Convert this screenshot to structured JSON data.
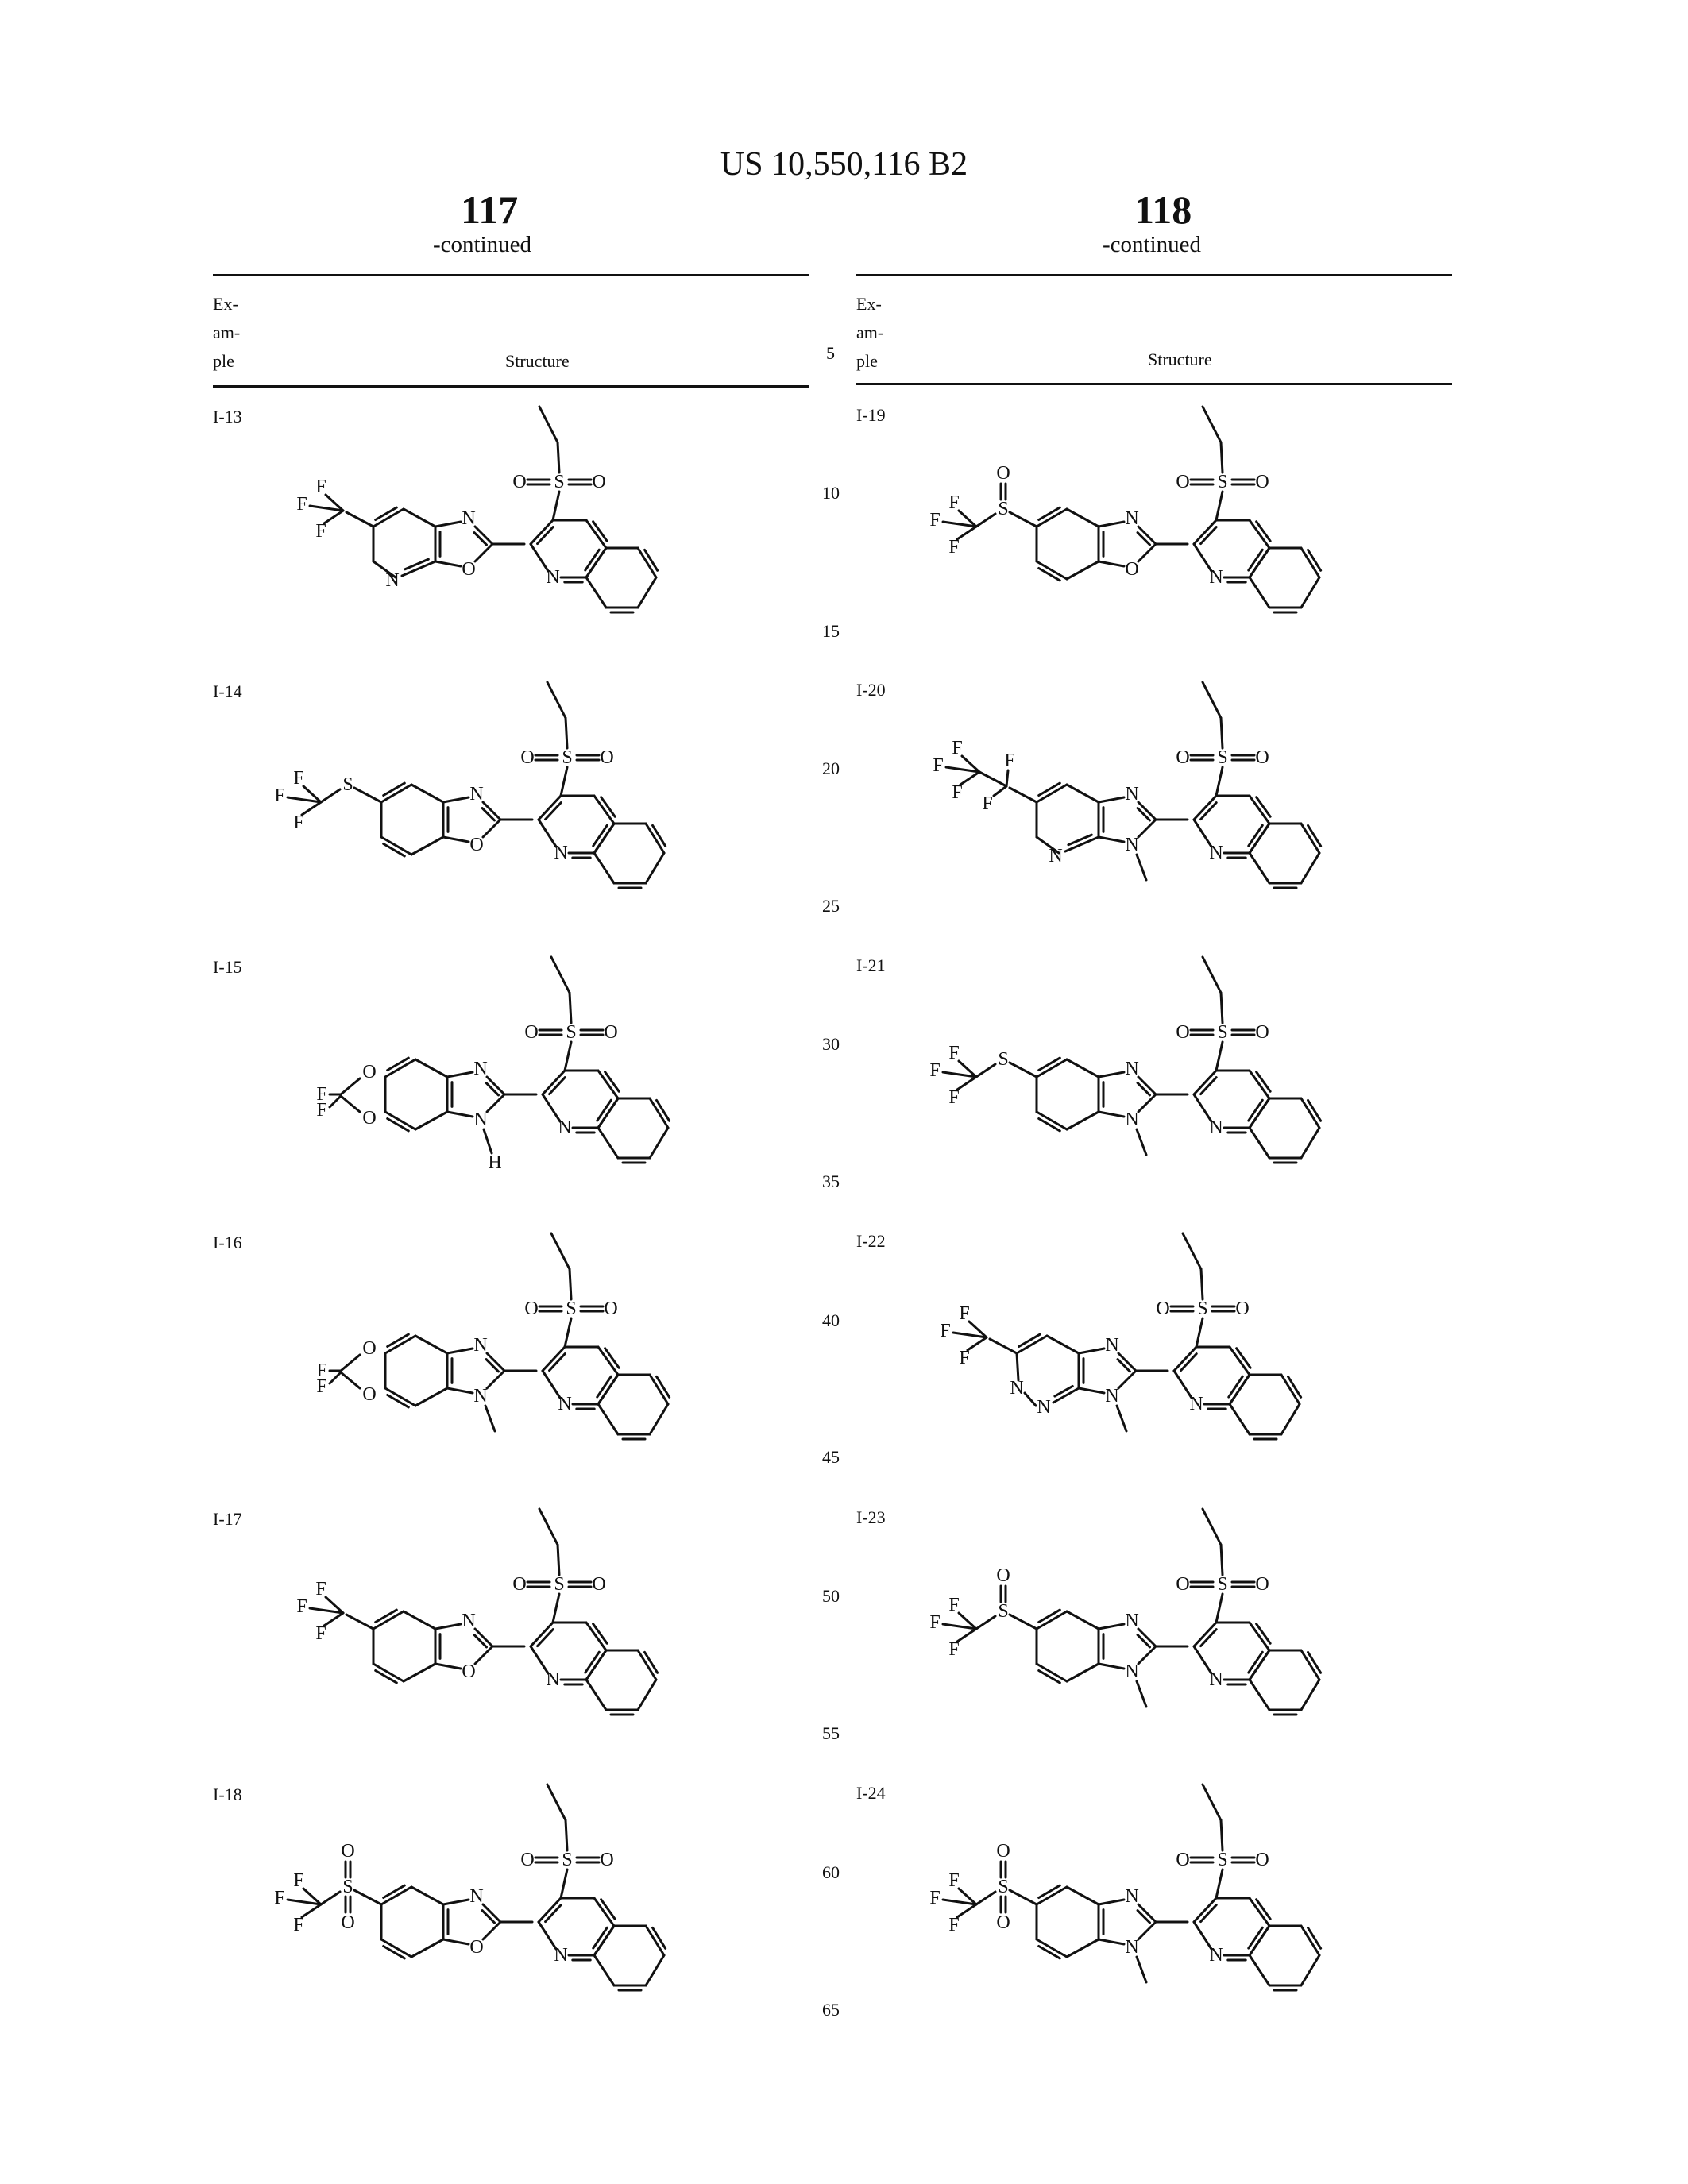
{
  "header": {
    "patent_number": "US 10,550,116 B2",
    "left_page_number": "117",
    "right_page_number": "118",
    "continued": "-continued"
  },
  "table": {
    "column_example": [
      "Ex-",
      "am-",
      "ple"
    ],
    "column_structure": "Structure"
  },
  "line_numbers": [
    "5",
    "10",
    "15",
    "20",
    "25",
    "30",
    "35",
    "40",
    "45",
    "50",
    "55",
    "60",
    "65"
  ],
  "left_examples": [
    {
      "id": "I-13",
      "substituent": "CF3",
      "core": "oxazolo-pyridine",
      "n_sub": ""
    },
    {
      "id": "I-14",
      "substituent": "SCF3",
      "core": "benzoxazole",
      "n_sub": ""
    },
    {
      "id": "I-15",
      "substituent": "OCF2O",
      "core": "benzimidazole",
      "n_sub": "H"
    },
    {
      "id": "I-16",
      "substituent": "OCF2O",
      "core": "benzimidazole",
      "n_sub": "CH3"
    },
    {
      "id": "I-17",
      "substituent": "CF3",
      "core": "benzoxazole",
      "n_sub": ""
    },
    {
      "id": "I-18",
      "substituent": "SO2CF3",
      "core": "benzoxazole",
      "n_sub": ""
    }
  ],
  "right_examples": [
    {
      "id": "I-19",
      "substituent": "SOCF3",
      "core": "benzoxazole",
      "n_sub": ""
    },
    {
      "id": "I-20",
      "substituent": "C2F5",
      "core": "imidazo-pyridine",
      "n_sub": "CH3"
    },
    {
      "id": "I-21",
      "substituent": "SCF3",
      "core": "benzimidazole",
      "n_sub": "CH3"
    },
    {
      "id": "I-22",
      "substituent": "CF3",
      "core": "imidazo-pyridazine",
      "n_sub": "CH3"
    },
    {
      "id": "I-23",
      "substituent": "SOCF3",
      "core": "benzimidazole",
      "n_sub": "CH3"
    },
    {
      "id": "I-24",
      "substituent": "SO2CF3",
      "core": "benzimidazole",
      "n_sub": "CH3"
    }
  ],
  "atom_labels": {
    "N": "N",
    "O": "O",
    "S": "S",
    "F": "F",
    "H": "H"
  }
}
